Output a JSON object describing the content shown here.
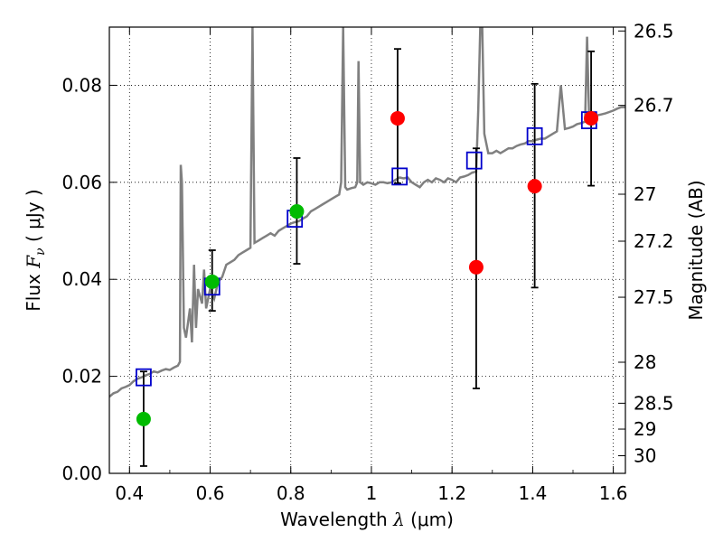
{
  "chart_data": {
    "type": "scatter",
    "xlabel_text": "Wavelength",
    "xlabel_symbol": "λ",
    "xlabel_unit": "(μm)",
    "ylabel_prefix": "Flux",
    "ylabel_symbol": "F",
    "ylabel_subscript": "ν",
    "ylabel_unit": "( μJy )",
    "y2label": "Magnitude (AB)",
    "xlim": [
      0.35,
      1.63
    ],
    "ylim": [
      0.0,
      0.092
    ],
    "x_ticks": [
      0.4,
      0.6,
      0.8,
      1.0,
      1.2,
      1.4,
      1.6
    ],
    "x_tick_labels": [
      "0.4",
      "0.6",
      "0.8",
      "1",
      "1.2",
      "1.4",
      "1.6"
    ],
    "y_ticks": [
      0.0,
      0.02,
      0.04,
      0.06,
      0.08
    ],
    "y_tick_labels": [
      "0.00",
      "0.02",
      "0.04",
      "0.06",
      "0.08"
    ],
    "mag_ticks": [
      {
        "mag": 26.5,
        "label": "26.5"
      },
      {
        "mag": 26.7,
        "label": "26.7"
      },
      {
        "mag": 27.0,
        "label": "27"
      },
      {
        "mag": 27.2,
        "label": "27.2"
      },
      {
        "mag": 27.5,
        "label": "27.5"
      },
      {
        "mag": 28.0,
        "label": "28"
      },
      {
        "mag": 28.5,
        "label": "28.5"
      },
      {
        "mag": 29.0,
        "label": "29"
      },
      {
        "mag": 30.0,
        "label": "30"
      }
    ],
    "grid": true,
    "model_sed": {
      "color": "#808080",
      "points": [
        [
          0.35,
          0.0158
        ],
        [
          0.36,
          0.0165
        ],
        [
          0.37,
          0.0168
        ],
        [
          0.38,
          0.0175
        ],
        [
          0.39,
          0.0178
        ],
        [
          0.4,
          0.0182
        ],
        [
          0.41,
          0.019
        ],
        [
          0.42,
          0.0195
        ],
        [
          0.43,
          0.0198
        ],
        [
          0.44,
          0.0202
        ],
        [
          0.45,
          0.0205
        ],
        [
          0.46,
          0.021
        ],
        [
          0.47,
          0.0208
        ],
        [
          0.48,
          0.0212
        ],
        [
          0.49,
          0.0215
        ],
        [
          0.5,
          0.0213
        ],
        [
          0.51,
          0.0218
        ],
        [
          0.52,
          0.0222
        ],
        [
          0.525,
          0.023
        ],
        [
          0.527,
          0.0636
        ],
        [
          0.53,
          0.06
        ],
        [
          0.535,
          0.03
        ],
        [
          0.54,
          0.028
        ],
        [
          0.55,
          0.034
        ],
        [
          0.555,
          0.027
        ],
        [
          0.56,
          0.043
        ],
        [
          0.565,
          0.03
        ],
        [
          0.57,
          0.038
        ],
        [
          0.58,
          0.035
        ],
        [
          0.585,
          0.042
        ],
        [
          0.59,
          0.034
        ],
        [
          0.6,
          0.038
        ],
        [
          0.61,
          0.036
        ],
        [
          0.62,
          0.0395
        ],
        [
          0.63,
          0.0405
        ],
        [
          0.64,
          0.043
        ],
        [
          0.65,
          0.0435
        ],
        [
          0.66,
          0.044
        ],
        [
          0.67,
          0.045
        ],
        [
          0.68,
          0.0455
        ],
        [
          0.69,
          0.046
        ],
        [
          0.7,
          0.0465
        ],
        [
          0.705,
          0.092
        ],
        [
          0.71,
          0.0475
        ],
        [
          0.72,
          0.048
        ],
        [
          0.73,
          0.0485
        ],
        [
          0.74,
          0.049
        ],
        [
          0.75,
          0.0495
        ],
        [
          0.76,
          0.049
        ],
        [
          0.77,
          0.05
        ],
        [
          0.78,
          0.0505
        ],
        [
          0.79,
          0.051
        ],
        [
          0.8,
          0.0515
        ],
        [
          0.81,
          0.0518
        ],
        [
          0.82,
          0.052
        ],
        [
          0.83,
          0.0525
        ],
        [
          0.84,
          0.053
        ],
        [
          0.85,
          0.054
        ],
        [
          0.86,
          0.0545
        ],
        [
          0.87,
          0.055
        ],
        [
          0.88,
          0.0555
        ],
        [
          0.89,
          0.056
        ],
        [
          0.9,
          0.0565
        ],
        [
          0.91,
          0.057
        ],
        [
          0.92,
          0.0575
        ],
        [
          0.925,
          0.06
        ],
        [
          0.93,
          0.092
        ],
        [
          0.935,
          0.059
        ],
        [
          0.94,
          0.0585
        ],
        [
          0.95,
          0.0588
        ],
        [
          0.96,
          0.059
        ],
        [
          0.965,
          0.06
        ],
        [
          0.968,
          0.085
        ],
        [
          0.972,
          0.06
        ],
        [
          0.98,
          0.0595
        ],
        [
          0.99,
          0.06
        ],
        [
          1.0,
          0.0598
        ],
        [
          1.01,
          0.0595
        ],
        [
          1.02,
          0.06
        ],
        [
          1.03,
          0.06
        ],
        [
          1.04,
          0.0598
        ],
        [
          1.05,
          0.06
        ],
        [
          1.06,
          0.0605
        ],
        [
          1.07,
          0.061
        ],
        [
          1.08,
          0.0608
        ],
        [
          1.09,
          0.061
        ],
        [
          1.1,
          0.06
        ],
        [
          1.11,
          0.0595
        ],
        [
          1.12,
          0.059
        ],
        [
          1.13,
          0.06
        ],
        [
          1.14,
          0.0605
        ],
        [
          1.15,
          0.06
        ],
        [
          1.16,
          0.0608
        ],
        [
          1.17,
          0.0605
        ],
        [
          1.18,
          0.06
        ],
        [
          1.19,
          0.0608
        ],
        [
          1.2,
          0.0605
        ],
        [
          1.21,
          0.06
        ],
        [
          1.22,
          0.061
        ],
        [
          1.23,
          0.0612
        ],
        [
          1.24,
          0.0615
        ],
        [
          1.25,
          0.062
        ],
        [
          1.26,
          0.0622
        ],
        [
          1.265,
          0.075
        ],
        [
          1.27,
          0.092
        ],
        [
          1.275,
          0.092
        ],
        [
          1.28,
          0.07
        ],
        [
          1.29,
          0.066
        ],
        [
          1.3,
          0.066
        ],
        [
          1.31,
          0.0665
        ],
        [
          1.32,
          0.066
        ],
        [
          1.33,
          0.0665
        ],
        [
          1.34,
          0.067
        ],
        [
          1.35,
          0.067
        ],
        [
          1.36,
          0.0675
        ],
        [
          1.37,
          0.0678
        ],
        [
          1.38,
          0.068
        ],
        [
          1.39,
          0.0685
        ],
        [
          1.4,
          0.0685
        ],
        [
          1.41,
          0.0688
        ],
        [
          1.42,
          0.069
        ],
        [
          1.43,
          0.069
        ],
        [
          1.44,
          0.0695
        ],
        [
          1.45,
          0.07
        ],
        [
          1.46,
          0.0705
        ],
        [
          1.47,
          0.08
        ],
        [
          1.48,
          0.071
        ],
        [
          1.49,
          0.0712
        ],
        [
          1.5,
          0.0715
        ],
        [
          1.51,
          0.072
        ],
        [
          1.52,
          0.0722
        ],
        [
          1.53,
          0.0725
        ],
        [
          1.535,
          0.09
        ],
        [
          1.54,
          0.073
        ],
        [
          1.55,
          0.0735
        ],
        [
          1.56,
          0.0738
        ],
        [
          1.57,
          0.074
        ],
        [
          1.58,
          0.0742
        ],
        [
          1.59,
          0.0745
        ],
        [
          1.6,
          0.0748
        ],
        [
          1.61,
          0.0752
        ],
        [
          1.62,
          0.0755
        ],
        [
          1.63,
          0.0755
        ]
      ]
    },
    "observed_hst": {
      "color": "#00bb00",
      "points": [
        {
          "x": 0.435,
          "y": 0.0112,
          "err_low": 0.0015,
          "err_high": 0.021
        },
        {
          "x": 0.605,
          "y": 0.0395,
          "err_low": 0.0335,
          "err_high": 0.046
        },
        {
          "x": 0.815,
          "y": 0.054,
          "err_low": 0.0432,
          "err_high": 0.065
        }
      ]
    },
    "observed_ir": {
      "color": "#ff0000",
      "points": [
        {
          "x": 1.065,
          "y": 0.0732,
          "err_low": 0.0598,
          "err_high": 0.0875
        },
        {
          "x": 1.26,
          "y": 0.0425,
          "err_low": 0.0175,
          "err_high": 0.067
        },
        {
          "x": 1.405,
          "y": 0.0592,
          "err_low": 0.0383,
          "err_high": 0.0803
        },
        {
          "x": 1.545,
          "y": 0.0732,
          "err_low": 0.0593,
          "err_high": 0.087
        }
      ]
    },
    "model_photometry": {
      "color": "#0000cc",
      "points": [
        {
          "x": 0.435,
          "y": 0.0198
        },
        {
          "x": 0.605,
          "y": 0.0385
        },
        {
          "x": 0.81,
          "y": 0.0525
        },
        {
          "x": 1.07,
          "y": 0.0612
        },
        {
          "x": 1.255,
          "y": 0.0645
        },
        {
          "x": 1.405,
          "y": 0.0695
        },
        {
          "x": 1.54,
          "y": 0.0728
        }
      ]
    }
  }
}
